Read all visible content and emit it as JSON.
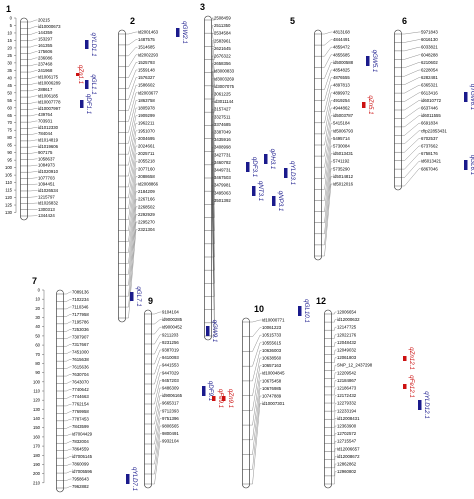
{
  "chromosomes": [
    {
      "num": "1",
      "axis": [
        "0",
        "5",
        "10",
        "15",
        "20",
        "25",
        "30",
        "35",
        "40",
        "45",
        "50",
        "55",
        "60",
        "65",
        "70",
        "75",
        "80",
        "85",
        "90",
        "95",
        "100",
        "105",
        "110",
        "115",
        "120",
        "125",
        "130"
      ],
      "markers": [
        "20215",
        "id10000673",
        "144359",
        "153297",
        "161355",
        "175606",
        "236086",
        "237468",
        "241968",
        "id1006175",
        "id10006289",
        "288617",
        "id1006185",
        "id10007778",
        "id10007997",
        "439764",
        "703931",
        "id1012330",
        "784044",
        "id1014819",
        "id1019606",
        "907175",
        "1058637",
        "1084973",
        "id1020910",
        "1077703",
        "1094451",
        "id1026534",
        "1215797",
        "id1026832",
        "1300313",
        "1344424"
      ],
      "qtls": [
        {
          "label": "qYLD1.1",
          "color": "blue"
        },
        {
          "label": "qZn1.1",
          "color": "red"
        },
        {
          "label": "qGL1.1",
          "color": "blue"
        },
        {
          "label": "qDF1.1",
          "color": "blue"
        }
      ]
    },
    {
      "num": "2",
      "axis": [],
      "markers": [
        "id2001463",
        "1487575",
        "1514685",
        "id2002293",
        "1525793",
        "1559148",
        "1576327",
        "1586602",
        "id2003677",
        "1863758",
        "1805978",
        "1909299",
        "1962211",
        "1951070",
        "2004695",
        "2024661",
        "2025711",
        "2055218",
        "2077160",
        "2088658",
        "id2008866",
        "2184209",
        "2267166",
        "2268502",
        "2292929",
        "2295270",
        "2321304"
      ],
      "qtls": [
        {
          "label": "qGW2.1",
          "color": "blue"
        }
      ]
    },
    {
      "num": "3",
      "axis": [],
      "markers": [
        "2508459",
        "2511350",
        "2534584",
        "2583961",
        "2621645",
        "2676322",
        "2658356",
        "id3000833",
        "id3003269",
        "id3007075",
        "3061225",
        "id3011144",
        "3157427",
        "3327511",
        "3374685",
        "3387049",
        "3435916",
        "3408998",
        "3427731",
        "3460782",
        "3449731",
        "3467503",
        "3479981",
        "3495063",
        "3501392"
      ],
      "qtls": [
        {
          "label": "qPH3.1",
          "color": "blue"
        },
        {
          "label": "qDF3.1",
          "color": "blue"
        },
        {
          "label": "qYLD3.1",
          "color": "blue"
        },
        {
          "label": "qNT3.1",
          "color": "blue"
        },
        {
          "label": "qNP3.1",
          "color": "blue"
        }
      ]
    },
    {
      "num": "5",
      "axis": [],
      "markers": [
        "4813168",
        "4844491",
        "4859472",
        "4855685",
        "id5000588",
        "4854825",
        "4876555",
        "4897813",
        "4899972",
        "4919254",
        "4944862",
        "id5003787",
        "5415184",
        "id5006793",
        "5495714",
        "5730084",
        "id5013431",
        "5741192",
        "5735290",
        "id5014812",
        "id5012016"
      ],
      "qtls": [
        {
          "label": "qGW5.1",
          "color": "blue"
        },
        {
          "label": "qZn5.1",
          "color": "red"
        }
      ]
    },
    {
      "num": "6",
      "axis": [],
      "markers": [
        "5971843",
        "6016130",
        "6033821",
        "6048288",
        "6210602",
        "6228054",
        "6282481",
        "6365321",
        "6613416",
        "id6010772",
        "6637446",
        "id6011555",
        "6691834",
        "cfip22853431",
        "6702537",
        "6737662",
        "6758176",
        "id6013421",
        "6867046"
      ],
      "qtls": [
        {
          "label": "qTGW6.1",
          "color": "blue"
        },
        {
          "label": "qGL6.1",
          "color": "blue"
        }
      ]
    },
    {
      "num": "7",
      "axis": [
        "0",
        "10",
        "20",
        "30",
        "40",
        "50",
        "60",
        "70",
        "80",
        "90",
        "100",
        "110",
        "120",
        "130",
        "140",
        "150",
        "160",
        "170",
        "180",
        "190",
        "200",
        "210"
      ],
      "markers": [
        "7089136",
        "7102234",
        "7110346",
        "7177958",
        "7195786",
        "7253036",
        "7307907",
        "7317667",
        "7451000",
        "7615638",
        "7615636",
        "7630704",
        "7643070",
        "7740642",
        "7744663",
        "7762154",
        "7769958",
        "7787453",
        "7843599",
        "id7004429",
        "7832004",
        "7864559",
        "id7005145",
        "7860099",
        "id7005596",
        "7958643",
        "7962882"
      ],
      "qtls": [
        {
          "label": "qGL7.1",
          "color": "blue"
        },
        {
          "label": "qYLD7.1",
          "color": "blue"
        }
      ]
    },
    {
      "num": "9",
      "axis": [],
      "markers": [
        "9104104",
        "id9000285",
        "id9000452",
        "9211203",
        "9231256",
        "9387019",
        "9410093",
        "9441553",
        "9447029",
        "9457203",
        "9486309",
        "id9006165",
        "9665317",
        "9712393",
        "9751396",
        "9806565",
        "9800491",
        "9932104"
      ],
      "qtls": [
        {
          "label": "qGW9.1",
          "color": "blue"
        },
        {
          "label": "qDF9.1",
          "color": "blue"
        },
        {
          "label": "qFe9.1",
          "color": "red"
        },
        {
          "label": "qZn9.1",
          "color": "red"
        }
      ]
    },
    {
      "num": "10",
      "axis": [],
      "markers": [
        "id10000771",
        "10061223",
        "10515733",
        "10555615",
        "10636003",
        "10638560",
        "10657163",
        "id10004845",
        "10675458",
        "10676985",
        "10747889",
        "id10007301"
      ],
      "qtls": [
        {
          "label": "qGL10.1",
          "color": "blue"
        }
      ]
    },
    {
      "num": "12",
      "axis": [],
      "markers": [
        "12006654",
        "id12000632",
        "12147725",
        "12022176",
        "12048432",
        "12049032",
        "12061803",
        "SNP_12_2437298",
        "12209542",
        "12184867",
        "12186473",
        "12172432",
        "12279332",
        "12233194",
        "id12008431",
        "12363900",
        "12702572",
        "12715547",
        "id12006657",
        "id12008672",
        "12862862",
        "12960802"
      ],
      "qtls": [
        {
          "label": "qZn12.1",
          "color": "red"
        },
        {
          "label": "qFe12.1",
          "color": "red"
        },
        {
          "label": "qYLD12.1",
          "color": "blue"
        }
      ]
    }
  ],
  "colors": {
    "blue": "#1a1a8c",
    "red": "#cc1111"
  }
}
